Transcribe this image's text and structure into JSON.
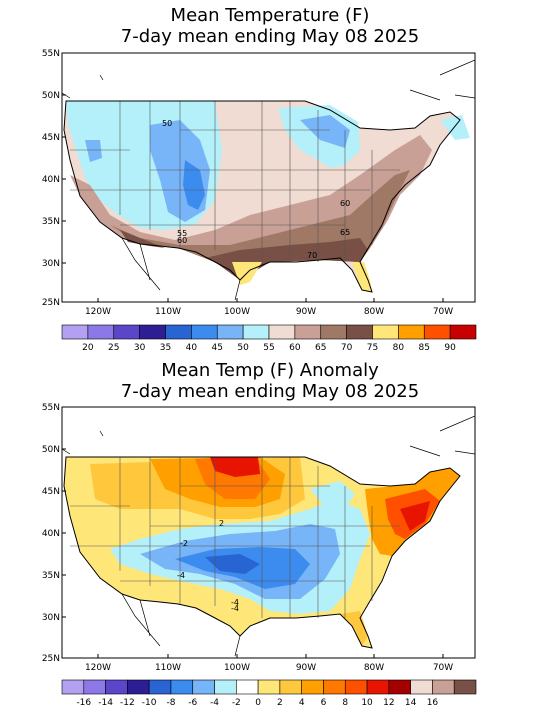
{
  "panel1": {
    "title_line1": "Mean Temperature (F)",
    "title_line2": "7-day mean ending May 08 2025",
    "lat_ticks": [
      "55N",
      "50N",
      "45N",
      "40N",
      "35N",
      "30N",
      "25N"
    ],
    "lon_ticks": [
      "120W",
      "110W",
      "100W",
      "90W",
      "80W",
      "70W"
    ],
    "legend": {
      "colors": [
        "#b4a0f0",
        "#8c78e6",
        "#5a46c8",
        "#2d1e96",
        "#2864d2",
        "#3c8cf0",
        "#78b4f8",
        "#b4f0fa",
        "#f0dcd2",
        "#c8a096",
        "#a07866",
        "#785046",
        "#ffe678",
        "#ffa000",
        "#ff5000",
        "#c80000"
      ],
      "labels": [
        "20",
        "25",
        "30",
        "35",
        "40",
        "45",
        "50",
        "55",
        "60",
        "65",
        "70",
        "75",
        "80",
        "85",
        "90"
      ]
    },
    "contour_labels": [
      "50",
      "60",
      "55",
      "65",
      "60",
      "70"
    ]
  },
  "panel2": {
    "title_line1": "Mean Temp (F) Anomaly",
    "title_line2": "7-day mean ending May 08 2025",
    "lat_ticks": [
      "55N",
      "50N",
      "45N",
      "40N",
      "35N",
      "30N",
      "25N"
    ],
    "lon_ticks": [
      "120W",
      "110W",
      "100W",
      "90W",
      "80W",
      "70W"
    ],
    "legend": {
      "colors": [
        "#b4a0f0",
        "#8c78e6",
        "#5a46c8",
        "#2d1e96",
        "#2864d2",
        "#3c8cf0",
        "#78b4f8",
        "#b4f0fa",
        "#ffffff",
        "#ffe678",
        "#ffc83c",
        "#ffa000",
        "#ff7800",
        "#ff5000",
        "#e61400",
        "#a50000",
        "#f0dcd2",
        "#c8a096",
        "#785046"
      ],
      "labels": [
        "-16",
        "-14",
        "-12",
        "-10",
        "-8",
        "-6",
        "-4",
        "-2",
        "0",
        "2",
        "4",
        "6",
        "8",
        "10",
        "12",
        "14",
        "16"
      ]
    },
    "contour_labels": [
      "-4",
      "-2",
      "-4",
      "-4",
      "2"
    ]
  }
}
